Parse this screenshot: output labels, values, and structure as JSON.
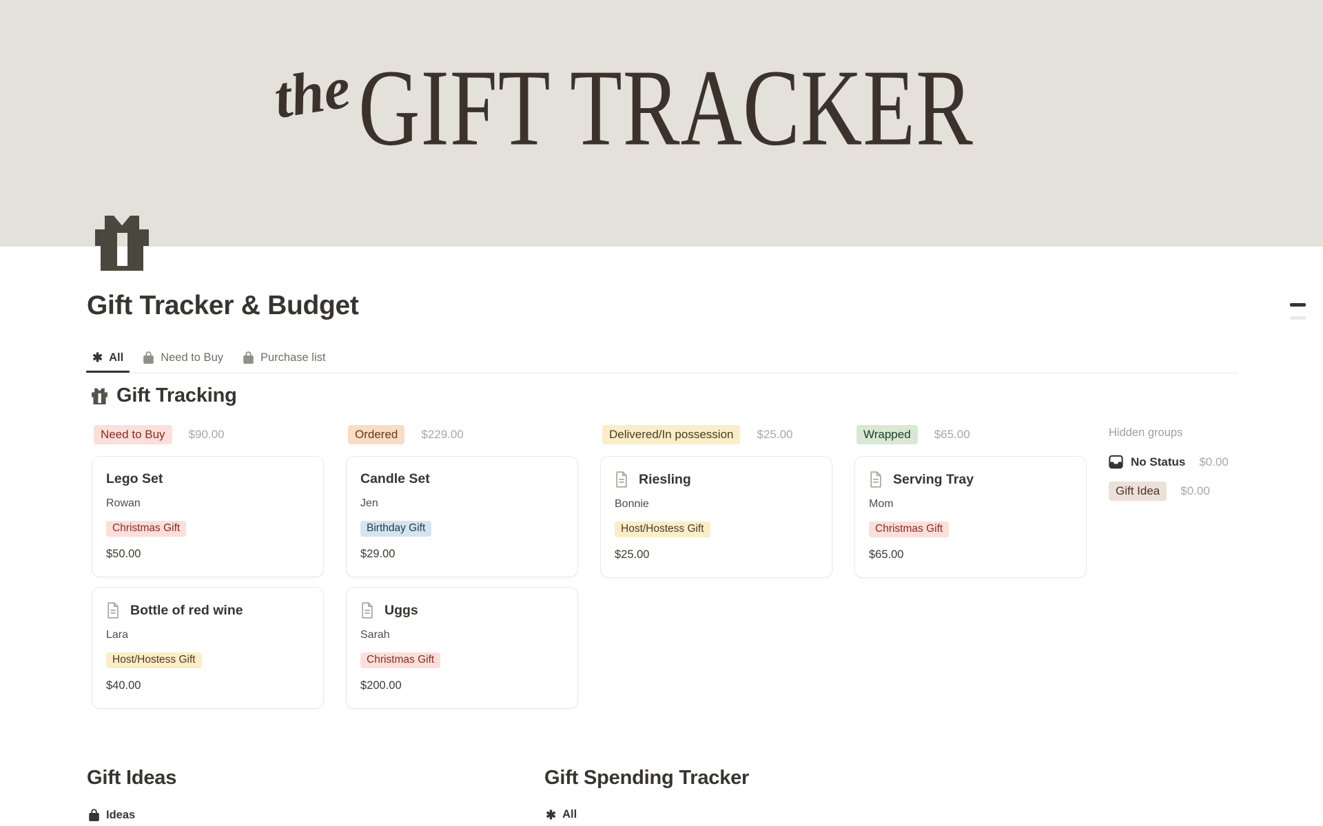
{
  "banner": {
    "prefix": "the",
    "title": "GIFT TRACKER"
  },
  "page": {
    "title": "Gift Tracker & Budget"
  },
  "tabs": [
    {
      "label": "All",
      "icon": "asterisk-icon",
      "active": true
    },
    {
      "label": "Need to Buy",
      "icon": "shopping-bag-icon",
      "active": false
    },
    {
      "label": "Purchase list",
      "icon": "shopping-bag-icon",
      "active": false
    }
  ],
  "board": {
    "heading": "Gift Tracking",
    "columns": [
      {
        "status": "Need to Buy",
        "color": "red",
        "total": "$90.00",
        "cards": [
          {
            "title": "Lego Set",
            "has_icon": false,
            "person": "Rowan",
            "tag": "Christmas Gift",
            "tag_color": "red",
            "price": "$50.00"
          },
          {
            "title": "Bottle of red wine",
            "has_icon": true,
            "person": "Lara",
            "tag": "Host/Hostess Gift",
            "tag_color": "yellow",
            "price": "$40.00"
          }
        ]
      },
      {
        "status": "Ordered",
        "color": "orange",
        "total": "$229.00",
        "cards": [
          {
            "title": "Candle Set",
            "has_icon": false,
            "person": "Jen",
            "tag": "Birthday Gift",
            "tag_color": "blue",
            "price": "$29.00"
          },
          {
            "title": "Uggs",
            "has_icon": true,
            "person": "Sarah",
            "tag": "Christmas Gift",
            "tag_color": "red",
            "price": "$200.00"
          }
        ]
      },
      {
        "status": "Delivered/In possession",
        "color": "yellow",
        "total": "$25.00",
        "cards": [
          {
            "title": "Riesling",
            "has_icon": true,
            "person": "Bonnie",
            "tag": "Host/Hostess Gift",
            "tag_color": "yellow",
            "price": "$25.00"
          }
        ]
      },
      {
        "status": "Wrapped",
        "color": "green",
        "total": "$65.00",
        "cards": [
          {
            "title": "Serving Tray",
            "has_icon": true,
            "person": "Mom",
            "tag": "Christmas Gift",
            "tag_color": "red",
            "price": "$65.00"
          }
        ]
      }
    ],
    "hidden_groups": {
      "label": "Hidden groups",
      "items": [
        {
          "label": "No Status",
          "icon": "inbox-icon",
          "is_badge": false,
          "tag_color": null,
          "amount": "$0.00"
        },
        {
          "label": "Gift Idea",
          "icon": null,
          "is_badge": true,
          "tag_color": "brown",
          "amount": "$0.00"
        }
      ]
    }
  },
  "bottom_sections": [
    {
      "heading": "Gift Ideas",
      "tab": {
        "label": "Ideas",
        "icon": "shopping-bag-icon"
      }
    },
    {
      "heading": "Gift Spending Tracker",
      "tab": {
        "label": "All",
        "icon": "asterisk-icon"
      }
    }
  ],
  "colors": {
    "banner_bg": "#e4e0da",
    "text_dark": "#37352f",
    "muted_gray": "#a9a7a3",
    "tag_red_bg": "#fcdfda",
    "tag_red_text": "#8a2a21",
    "tag_orange_bg": "#f8dcc4",
    "tag_orange_text": "#653917",
    "tag_yellow_bg": "#fbedc8",
    "tag_yellow_text": "#4d3b22",
    "tag_green_bg": "#d7e8d3",
    "tag_green_text": "#1f3d2b",
    "tag_blue_bg": "#d3e5ef",
    "tag_blue_text": "#223c4f",
    "tag_brown_bg": "#ece0d8",
    "tag_brown_text": "#4a3128"
  }
}
